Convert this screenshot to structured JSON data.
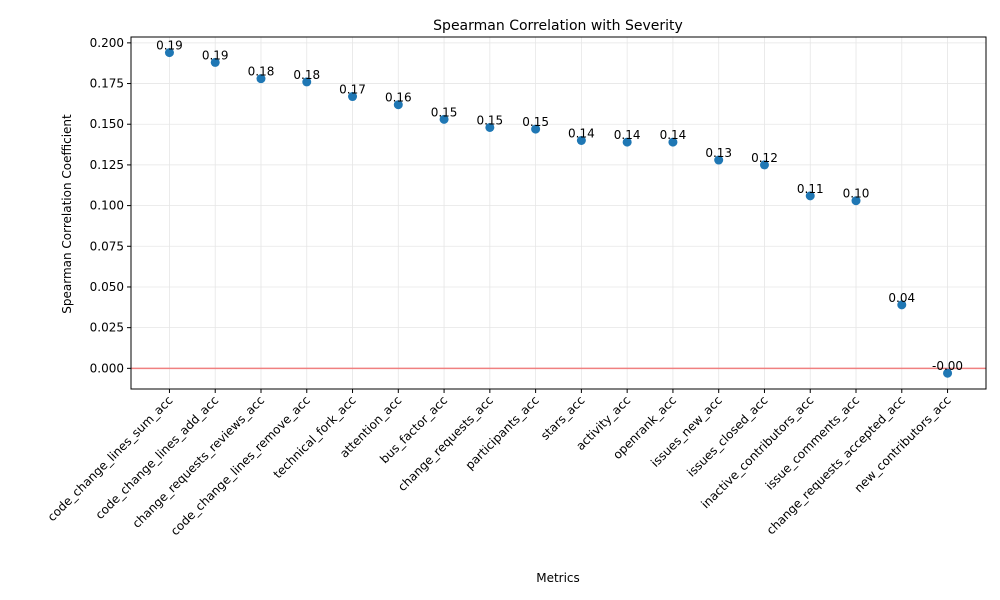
{
  "chart_data": {
    "type": "scatter",
    "title": "Spearman Correlation with Severity",
    "xlabel": "Metrics",
    "ylabel": "Spearman Correlation Coefficient",
    "categories": [
      "code_change_lines_sum_acc",
      "code_change_lines_add_acc",
      "change_requests_reviews_acc",
      "code_change_lines_remove_acc",
      "technical_fork_acc",
      "attention_acc",
      "bus_factor_acc",
      "change_requests_acc",
      "participants_acc",
      "stars_acc",
      "activity_acc",
      "openrank_acc",
      "issues_new_acc",
      "issues_closed_acc",
      "inactive_contributors_acc",
      "issue_comments_acc",
      "change_requests_accepted_acc",
      "new_contributors_acc"
    ],
    "values": [
      0.194,
      0.188,
      0.178,
      0.176,
      0.167,
      0.162,
      0.153,
      0.148,
      0.147,
      0.14,
      0.139,
      0.139,
      0.128,
      0.125,
      0.106,
      0.103,
      0.039,
      -0.003
    ],
    "data_labels": [
      "0.19",
      "0.19",
      "0.18",
      "0.18",
      "0.17",
      "0.16",
      "0.15",
      "0.15",
      "0.15",
      "0.14",
      "0.14",
      "0.14",
      "0.13",
      "0.12",
      "0.11",
      "0.10",
      "0.04",
      "-0.00"
    ],
    "yticks": [
      0.0,
      0.025,
      0.05,
      0.075,
      0.1,
      0.125,
      0.15,
      0.175,
      0.2
    ],
    "ytick_labels": [
      "0.000",
      "0.025",
      "0.050",
      "0.075",
      "0.100",
      "0.125",
      "0.150",
      "0.175",
      "0.200"
    ],
    "ylim": [
      -0.0127,
      0.2036
    ],
    "grid": true,
    "reference_line": 0,
    "colors": {
      "marker": "#1f77b4",
      "reference_line": "#f08080",
      "grid": "#e6e6e6",
      "axis": "#000000"
    }
  }
}
